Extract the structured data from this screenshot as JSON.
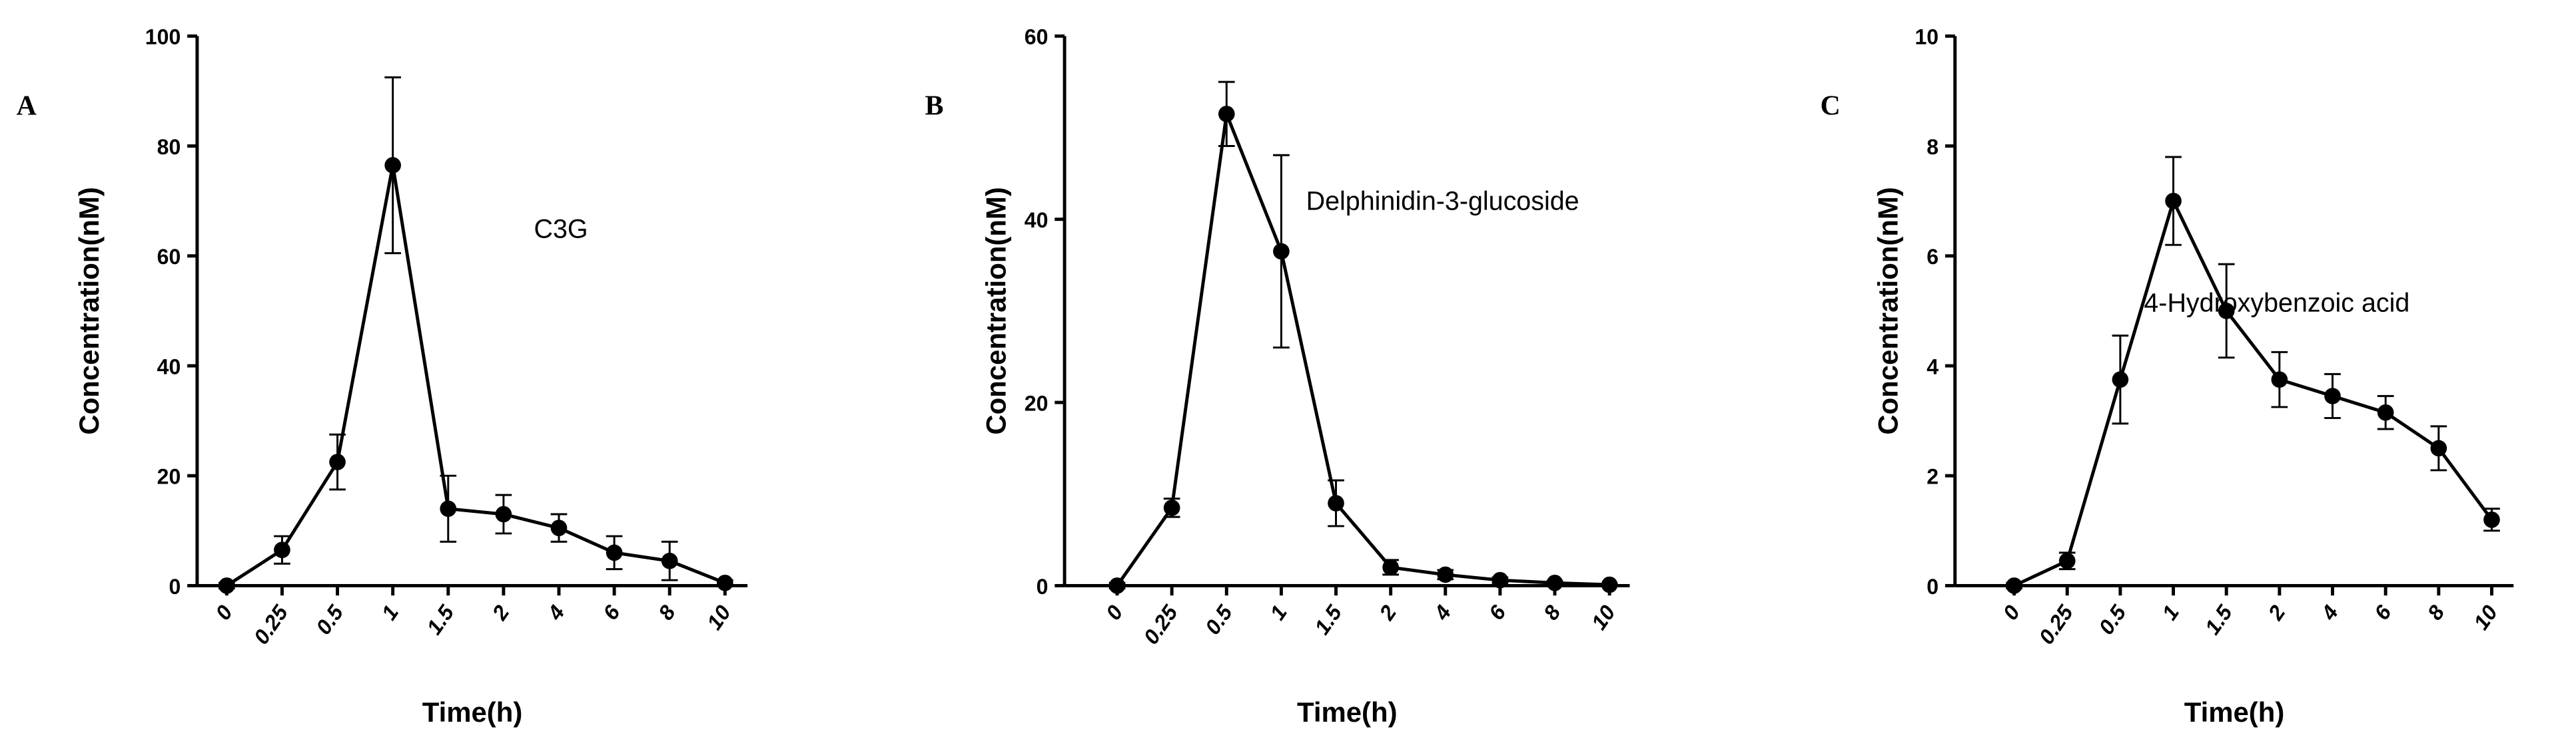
{
  "chart_data": [
    {
      "type": "line",
      "panel_label": "A",
      "x_label": "Time(h)",
      "y_label": "Concentration(nM)",
      "categories": [
        "0",
        "0.25",
        "0.5",
        "1",
        "1.5",
        "2",
        "4",
        "6",
        "8",
        "10"
      ],
      "ylim": [
        0,
        100
      ],
      "yticks": [
        0,
        20,
        40,
        60,
        80,
        100
      ],
      "series": [
        {
          "name": "C3G",
          "color": "#000000",
          "values": [
            0,
            6.5,
            22.5,
            76.5,
            14,
            13,
            10.5,
            6,
            4.5,
            0.5
          ],
          "errors": [
            0.5,
            2.5,
            5,
            16,
            6,
            3.5,
            2.5,
            3,
            3.5,
            0.5
          ]
        }
      ]
    },
    {
      "type": "line",
      "panel_label": "B",
      "x_label": "Time(h)",
      "y_label": "Concentration(nM)",
      "categories": [
        "0",
        "0.25",
        "0.5",
        "1",
        "1.5",
        "2",
        "4",
        "6",
        "8",
        "10"
      ],
      "ylim": [
        0,
        60
      ],
      "yticks": [
        0,
        20,
        40,
        60
      ],
      "series": [
        {
          "name": "Delphinidin-3-glucoside",
          "color": "#000000",
          "values": [
            0,
            8.5,
            51.5,
            36.5,
            9,
            2,
            1.2,
            0.6,
            0.3,
            0.1
          ],
          "errors": [
            0.3,
            1,
            3.5,
            10.5,
            2.5,
            0.8,
            0.5,
            0.3,
            0.2,
            0.1
          ]
        }
      ]
    },
    {
      "type": "line",
      "panel_label": "C",
      "x_label": "Time(h)",
      "y_label": "Concentration(nM)",
      "categories": [
        "0",
        "0.25",
        "0.5",
        "1",
        "1.5",
        "2",
        "4",
        "6",
        "8",
        "10"
      ],
      "ylim": [
        0,
        10
      ],
      "yticks": [
        0,
        2,
        4,
        6,
        8,
        10
      ],
      "series": [
        {
          "name": "4-Hydroxybenzoic acid",
          "color": "#000000",
          "values": [
            0,
            0.45,
            3.75,
            7.0,
            5.0,
            3.75,
            3.45,
            3.15,
            2.5,
            1.2
          ],
          "errors": [
            0.05,
            0.15,
            0.8,
            0.8,
            0.85,
            0.5,
            0.4,
            0.3,
            0.4,
            0.2
          ]
        }
      ]
    }
  ]
}
